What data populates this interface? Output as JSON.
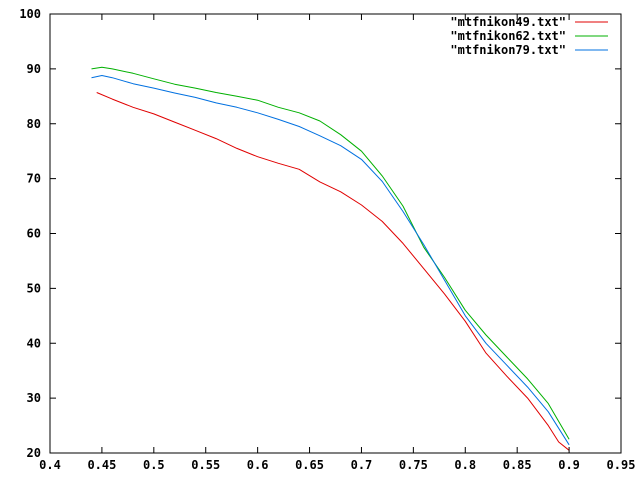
{
  "chart_data": {
    "type": "line",
    "title": "",
    "xlabel": "",
    "ylabel": "",
    "xlim": [
      0.4,
      0.95
    ],
    "ylim": [
      20,
      100
    ],
    "xticks": [
      "0.4",
      "0.45",
      "0.5",
      "0.55",
      "0.6",
      "0.65",
      "0.7",
      "0.75",
      "0.8",
      "0.85",
      "0.9",
      "0.95"
    ],
    "yticks": [
      "20",
      "30",
      "40",
      "50",
      "60",
      "70",
      "80",
      "90",
      "100"
    ],
    "grid": false,
    "legend_position": "top-right",
    "series": [
      {
        "name": "\"mtfnikon49.txt\"",
        "color": "#e00000",
        "x": [
          0.445,
          0.46,
          0.48,
          0.5,
          0.52,
          0.54,
          0.56,
          0.58,
          0.6,
          0.62,
          0.64,
          0.66,
          0.68,
          0.7,
          0.72,
          0.74,
          0.76,
          0.78,
          0.8,
          0.82,
          0.84,
          0.86,
          0.88,
          0.89,
          0.9
        ],
        "y": [
          85.7,
          84.5,
          83.0,
          81.8,
          80.3,
          78.8,
          77.3,
          75.5,
          74.0,
          72.8,
          71.7,
          69.4,
          67.6,
          65.2,
          62.2,
          58.2,
          53.6,
          49.0,
          44.0,
          38.2,
          34.0,
          30.0,
          25.0,
          22.0,
          20.5
        ]
      },
      {
        "name": "\"mtfnikon62.txt\"",
        "color": "#00b000",
        "x": [
          0.44,
          0.45,
          0.46,
          0.48,
          0.5,
          0.52,
          0.54,
          0.56,
          0.58,
          0.6,
          0.62,
          0.64,
          0.66,
          0.68,
          0.7,
          0.72,
          0.74,
          0.76,
          0.78,
          0.8,
          0.82,
          0.84,
          0.86,
          0.88,
          0.9
        ],
        "y": [
          90.0,
          90.3,
          90.0,
          89.2,
          88.2,
          87.2,
          86.5,
          85.7,
          85.0,
          84.3,
          83.0,
          82.0,
          80.5,
          78.0,
          75.0,
          70.5,
          65.0,
          57.5,
          52.0,
          46.0,
          41.5,
          37.5,
          33.5,
          29.0,
          22.5
        ]
      },
      {
        "name": "\"mtfnikon79.txt\"",
        "color": "#0070e0",
        "x": [
          0.44,
          0.45,
          0.46,
          0.48,
          0.5,
          0.52,
          0.54,
          0.56,
          0.58,
          0.6,
          0.62,
          0.64,
          0.66,
          0.68,
          0.7,
          0.72,
          0.74,
          0.76,
          0.78,
          0.8,
          0.82,
          0.84,
          0.86,
          0.88,
          0.9
        ],
        "y": [
          88.4,
          88.8,
          88.4,
          87.3,
          86.5,
          85.6,
          84.8,
          83.8,
          83.0,
          82.0,
          80.8,
          79.5,
          77.8,
          76.0,
          73.5,
          69.5,
          64.0,
          58.0,
          51.5,
          45.0,
          40.0,
          36.0,
          32.0,
          27.5,
          21.5
        ]
      }
    ]
  }
}
